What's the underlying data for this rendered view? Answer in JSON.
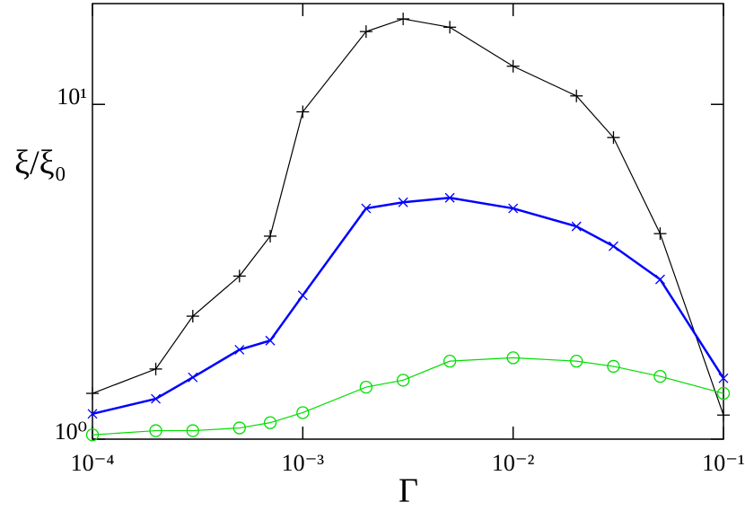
{
  "chart_data": {
    "type": "line",
    "log_x": true,
    "log_y": true,
    "x_label": "Γ",
    "y_label": "ξ/ξ₀",
    "x": [
      0.0001,
      0.0002,
      0.0003,
      0.0005,
      0.0007,
      0.001,
      0.002,
      0.003,
      0.005,
      0.01,
      0.02,
      0.03,
      0.05,
      0.1
    ],
    "series": [
      {
        "color": "#000000",
        "marker": "plus",
        "line_width": 1.2,
        "values": [
          1.37,
          1.62,
          2.33,
          3.07,
          4.04,
          9.5,
          16.5,
          18.0,
          17.0,
          13.0,
          10.6,
          7.96,
          4.11,
          1.18
        ]
      },
      {
        "color": "#0000ff",
        "marker": "cross",
        "line_width": 2.5,
        "values": [
          1.19,
          1.32,
          1.53,
          1.85,
          1.97,
          2.69,
          4.89,
          5.1,
          5.26,
          4.89,
          4.32,
          3.77,
          3.0,
          1.52
        ]
      },
      {
        "color": "#00dd00",
        "marker": "circle",
        "line_width": 1.2,
        "values": [
          1.03,
          1.06,
          1.06,
          1.08,
          1.12,
          1.2,
          1.43,
          1.5,
          1.71,
          1.75,
          1.71,
          1.65,
          1.54,
          1.37
        ]
      }
    ],
    "xlim": [
      0.0001,
      0.1
    ],
    "xticks": [
      {
        "value": 0.0001,
        "label": "10⁻⁴"
      },
      {
        "value": 0.001,
        "label": "10⁻³"
      },
      {
        "value": 0.01,
        "label": "10⁻²"
      },
      {
        "value": 0.1,
        "label": "10⁻¹"
      }
    ],
    "ylim": [
      1,
      20
    ],
    "yticks": [
      {
        "value": 1,
        "label": "10⁰"
      },
      {
        "value": 10,
        "label": "10¹"
      }
    ]
  }
}
